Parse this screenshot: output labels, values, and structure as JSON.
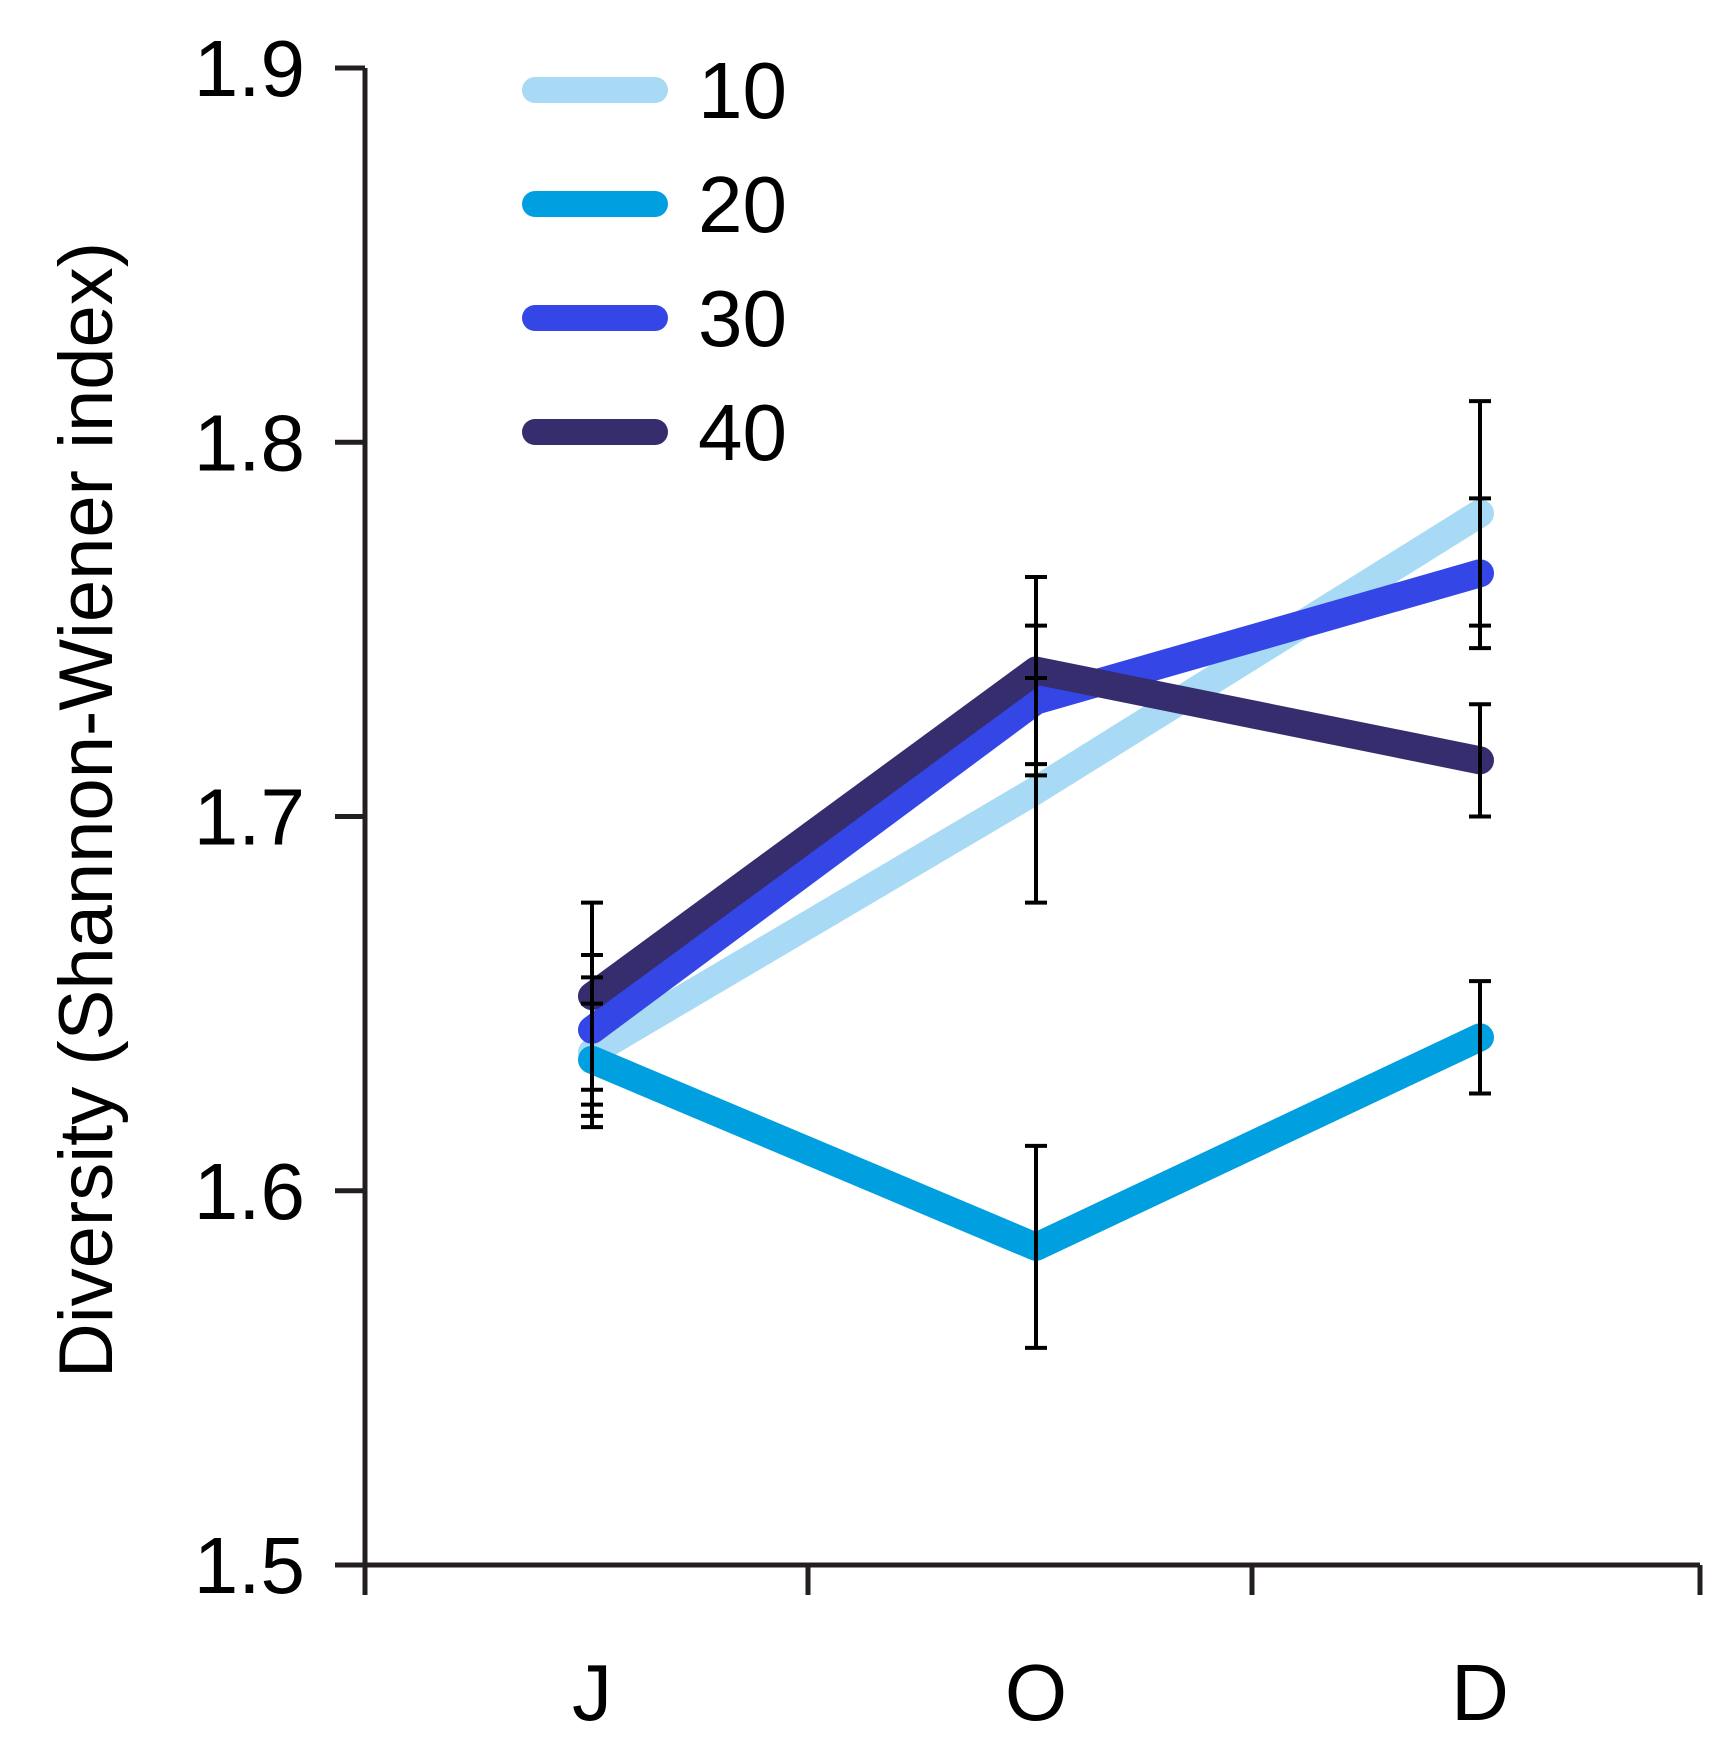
{
  "chart_data": {
    "type": "line",
    "title": "",
    "xlabel": "",
    "ylabel": "Diversity (Shannon-Wiener index)",
    "categories": [
      "J",
      "O",
      "D"
    ],
    "ylim": [
      1.5,
      1.9
    ],
    "yticks": [
      1.5,
      1.6,
      1.7,
      1.8,
      1.9
    ],
    "ytick_labels": [
      "1.5",
      "1.6",
      "1.7",
      "1.8",
      "1.9"
    ],
    "legend_position": "top-left",
    "series": [
      {
        "name": "10",
        "color": "#a8daf5",
        "values": [
          1.637,
          1.707,
          1.781
        ],
        "err": [
          0.02,
          0.03,
          0.03
        ]
      },
      {
        "name": "20",
        "color": "#00a0e0",
        "values": [
          1.635,
          1.585,
          1.641
        ],
        "err": [
          0.015,
          0.027,
          0.015
        ]
      },
      {
        "name": "30",
        "color": "#3546e6",
        "values": [
          1.643,
          1.731,
          1.765
        ],
        "err": [
          0.02,
          0.02,
          0.02
        ]
      },
      {
        "name": "40",
        "color": "#352d6d",
        "values": [
          1.652,
          1.739,
          1.715
        ],
        "err": [
          0.025,
          0.025,
          0.015
        ]
      }
    ]
  }
}
